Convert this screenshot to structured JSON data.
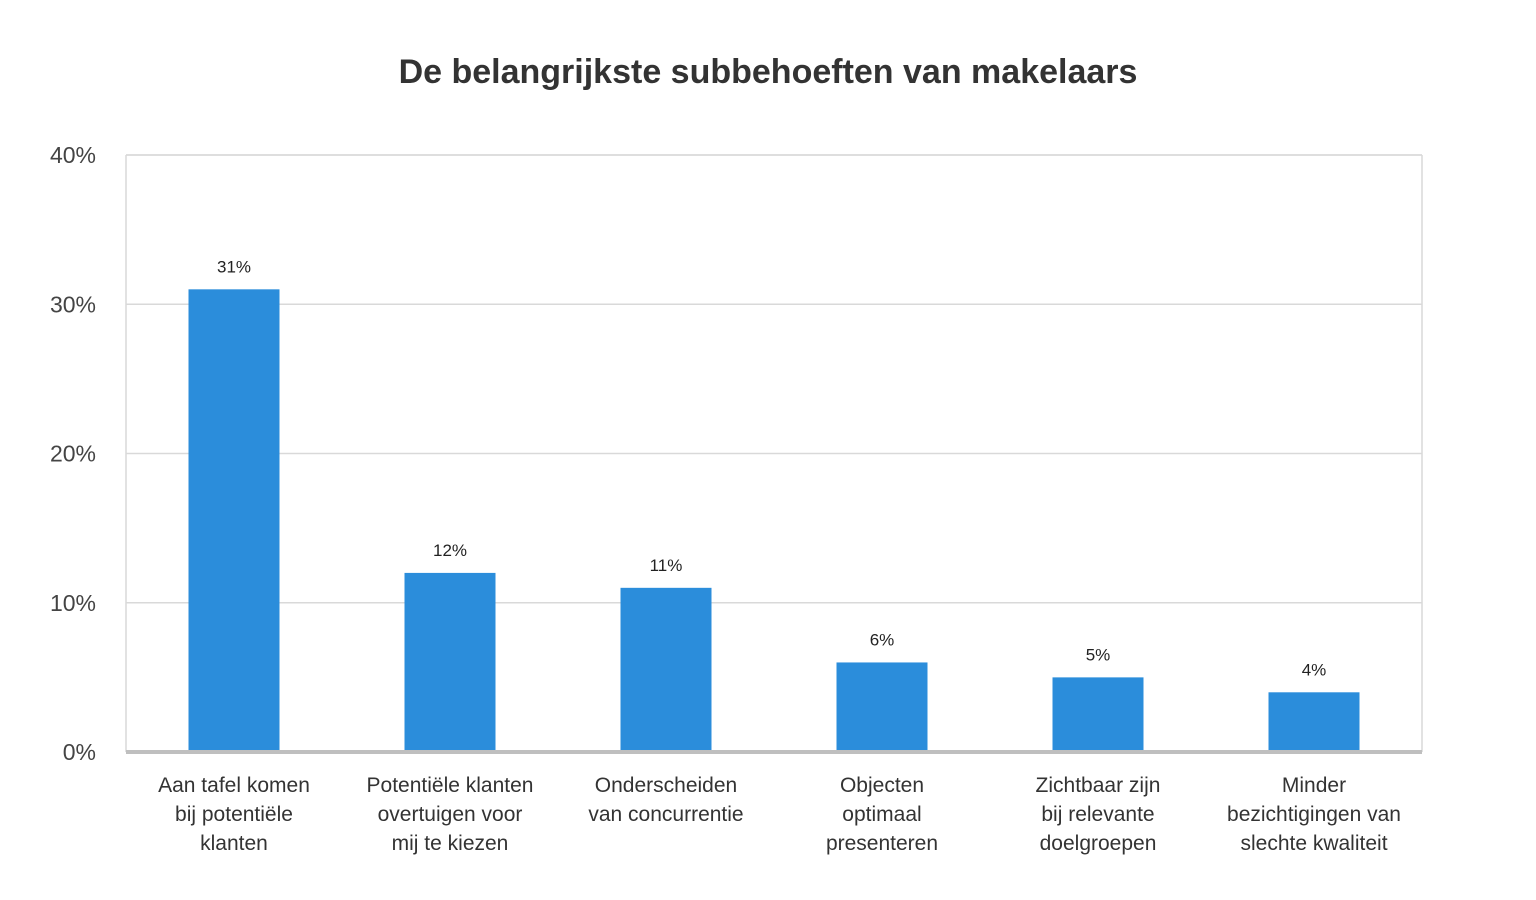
{
  "chart_data": {
    "type": "bar",
    "title": "De belangrijkste subbehoeften van makelaars",
    "xlabel": "",
    "ylabel": "",
    "ylim": [
      0,
      40
    ],
    "yticks": [
      0,
      10,
      20,
      30,
      40
    ],
    "ytick_labels": [
      "0%",
      "10%",
      "20%",
      "30%",
      "40%"
    ],
    "grid": true,
    "legend": "none",
    "bar_color": "#2b8ddb",
    "categories": [
      [
        "Aan tafel komen",
        "bij potentiële",
        "klanten"
      ],
      [
        "Potentiële klanten",
        "overtuigen voor",
        "mij te kiezen"
      ],
      [
        "Onderscheiden",
        "van concurrentie"
      ],
      [
        "Objecten",
        "optimaal",
        "presenteren"
      ],
      [
        "Zichtbaar zijn",
        "bij relevante",
        "doelgroepen"
      ],
      [
        "Minder",
        "bezichtigingen van",
        "slechte kwaliteit"
      ]
    ],
    "values": [
      31,
      12,
      11,
      6,
      5,
      4
    ],
    "data_labels": [
      "31%",
      "12%",
      "11%",
      "6%",
      "5%",
      "4%"
    ]
  }
}
